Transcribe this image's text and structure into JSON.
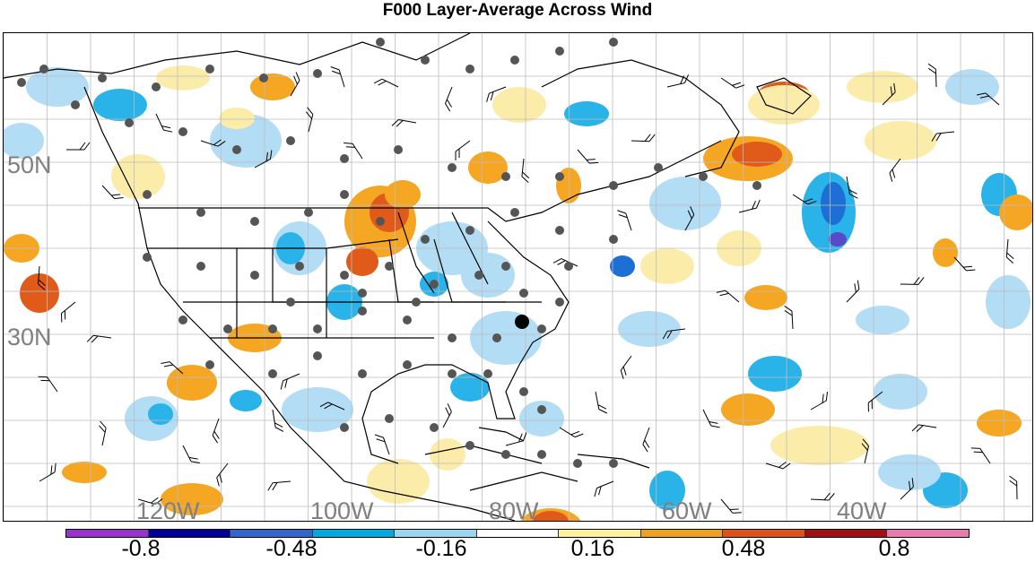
{
  "title": "F000 Layer-Average Across Wind",
  "map": {
    "latitude_labels": [
      "50N",
      "30N"
    ],
    "longitude_labels": [
      "120W",
      "100W",
      "80W",
      "60W",
      "40W"
    ],
    "grid": true,
    "projection": "cylindrical equidistant, North America and western Atlantic",
    "coastlines_and_borders": true,
    "features": [
      "shaded across-wind anomaly field",
      "wind barbs",
      "observation station dots (gray)",
      "highlighted station (black dot, US southeast coast)"
    ]
  },
  "colorbar": {
    "tick_labels": [
      "-0.8",
      "-0.48",
      "-0.16",
      "0.16",
      "0.48",
      "0.8"
    ],
    "colors": [
      "#9933cc",
      "#000099",
      "#3366cc",
      "#00a9e0",
      "#99d6f0",
      "#ffffff",
      "#fff0a0",
      "#f0a020",
      "#e0501a",
      "#a01010",
      "#e87ab0"
    ]
  },
  "colors": {
    "blue_light": "#b3dcf5",
    "blue_mid": "#29b3e8",
    "blue_dark": "#1d6fd6",
    "purple": "#5a4ac8",
    "yellow_light": "#fcecaa",
    "orange": "#f5a623",
    "orange_dark": "#e05a1a",
    "station_dot": "#555555",
    "highlight_station": "#000000"
  }
}
